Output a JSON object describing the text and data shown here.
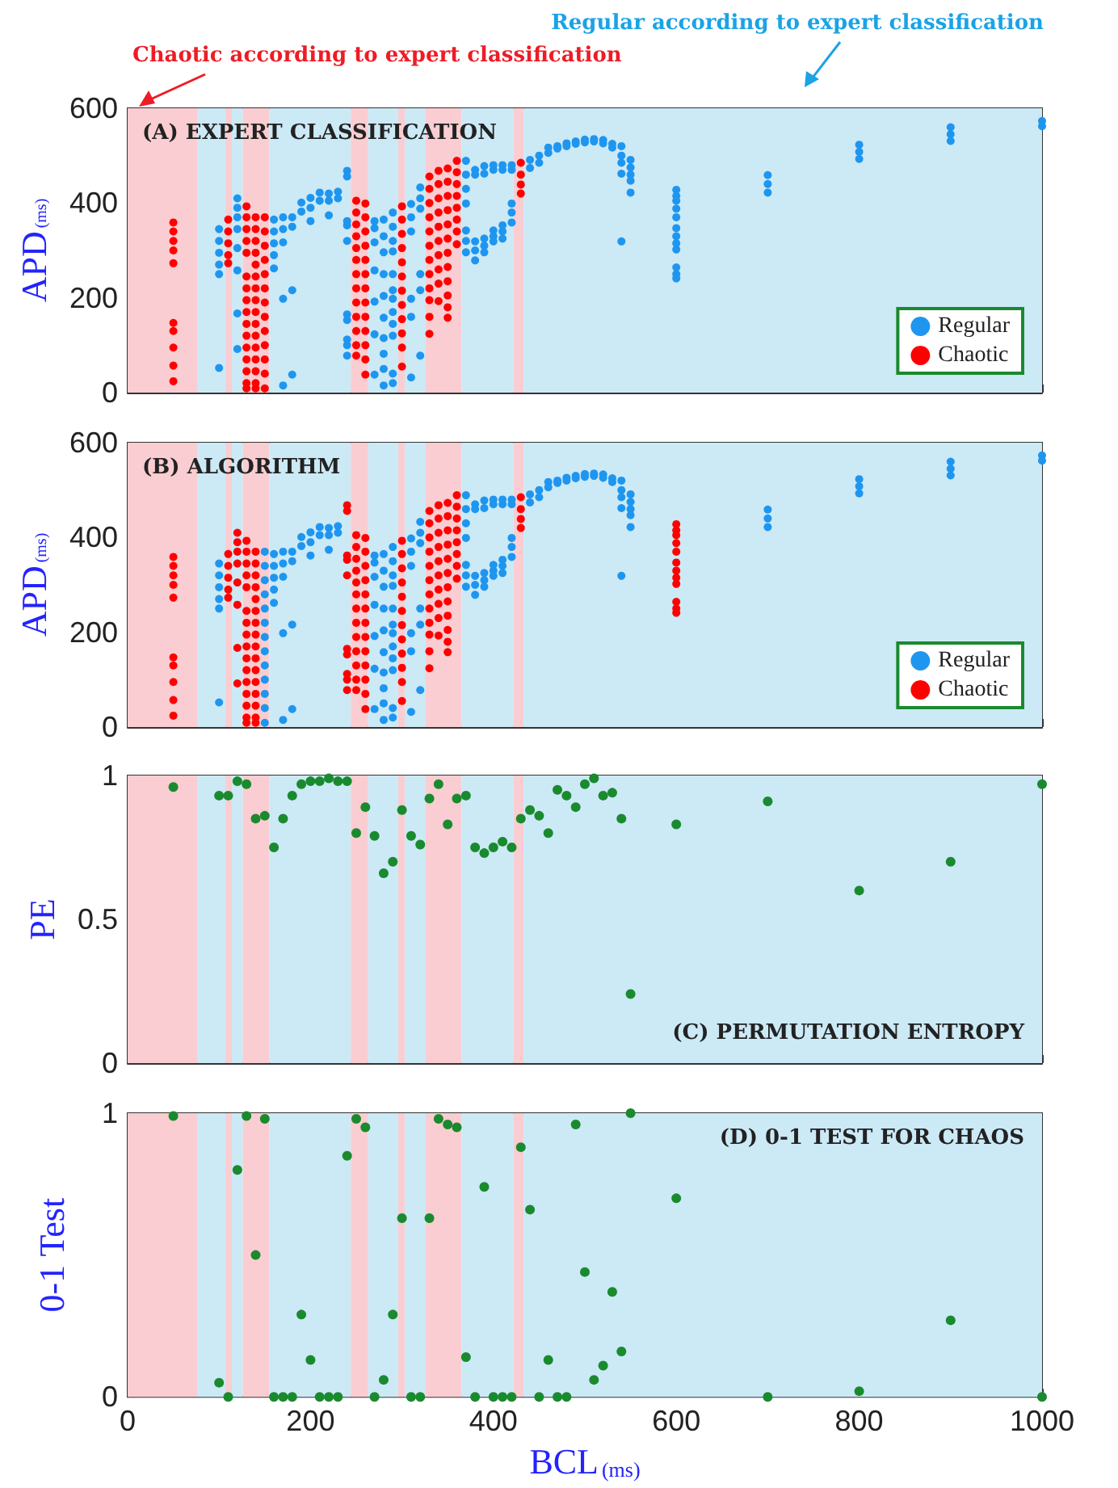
{
  "chart_data": [
    {
      "type": "scatter",
      "title": "(A) EXPERT CLASSIFICATION",
      "ylabel": "APD$_{(ms)}$",
      "annotations": [
        "Chaotic according to expert classification",
        "Regular according to expert classification"
      ],
      "xlim": [
        0,
        1000
      ],
      "xticks": [
        0,
        200,
        400,
        600,
        800,
        1000
      ],
      "ylim": [
        0,
        600
      ],
      "yticks": [
        0,
        200,
        400,
        600
      ],
      "tick_labels": "y",
      "legend": "bottom right",
      "marker": "circle",
      "bands": [
        {
          "axis": "x",
          "from": 0,
          "to": 76,
          "color": "#f9cdd1"
        },
        {
          "axis": "x",
          "from": 76,
          "to": 107,
          "color": "#cce9f6"
        },
        {
          "axis": "x",
          "from": 107,
          "to": 114,
          "color": "#f9cdd1"
        },
        {
          "axis": "x",
          "from": 114,
          "to": 126,
          "color": "#cce9f6"
        },
        {
          "axis": "x",
          "from": 126,
          "to": 155,
          "color": "#f9cdd1"
        },
        {
          "axis": "x",
          "from": 155,
          "to": 244,
          "color": "#cce9f6"
        },
        {
          "axis": "x",
          "from": 244,
          "to": 263,
          "color": "#f9cdd1"
        },
        {
          "axis": "x",
          "from": 263,
          "to": 296,
          "color": "#cce9f6"
        },
        {
          "axis": "x",
          "from": 296,
          "to": 303,
          "color": "#f9cdd1"
        },
        {
          "axis": "x",
          "from": 303,
          "to": 326,
          "color": "#cce9f6"
        },
        {
          "axis": "x",
          "from": 326,
          "to": 365,
          "color": "#f9cdd1"
        },
        {
          "axis": "x",
          "from": 365,
          "to": 422,
          "color": "#cce9f6"
        },
        {
          "axis": "x",
          "from": 422,
          "to": 433,
          "color": "#f9cdd1"
        },
        {
          "axis": "x",
          "from": 433,
          "to": 1000,
          "color": "#cce9f6"
        }
      ],
      "series": [
        {
          "name": "Regular",
          "color": "#1e96f0",
          "x": [
            100,
            100,
            100,
            100,
            100,
            100,
            120,
            120,
            120,
            120,
            120,
            120,
            120,
            120,
            160,
            160,
            160,
            160,
            160,
            170,
            170,
            170,
            170,
            170,
            180,
            180,
            180,
            180,
            190,
            190,
            200,
            200,
            200,
            210,
            210,
            220,
            220,
            220,
            230,
            230,
            240,
            240,
            240,
            240,
            240,
            240,
            240,
            240,
            240,
            240,
            270,
            270,
            270,
            270,
            270,
            270,
            270,
            280,
            280,
            280,
            280,
            280,
            280,
            280,
            280,
            280,
            280,
            290,
            290,
            290,
            290,
            290,
            290,
            290,
            290,
            290,
            290,
            290,
            290,
            310,
            310,
            310,
            310,
            310,
            310,
            320,
            320,
            320,
            320,
            320,
            320,
            370,
            370,
            370,
            370,
            370,
            370,
            370,
            380,
            380,
            380,
            380,
            380,
            390,
            390,
            390,
            390,
            390,
            400,
            400,
            400,
            400,
            400,
            410,
            410,
            410,
            410,
            410,
            420,
            420,
            420,
            420,
            420,
            440,
            440,
            450,
            450,
            460,
            460,
            470,
            470,
            480,
            480,
            490,
            490,
            500,
            500,
            510,
            510,
            520,
            520,
            530,
            530,
            540,
            540,
            540,
            540,
            540,
            550,
            550,
            550,
            550,
            550,
            600,
            600,
            600,
            600,
            600,
            600,
            600,
            600,
            600,
            600,
            600,
            600,
            700,
            700,
            700,
            800,
            800,
            800,
            900,
            900,
            900,
            1000,
            1000
          ],
          "values": [
            345,
            320,
            295,
            270,
            250,
            52,
            410,
            390,
            370,
            345,
            305,
            258,
            167,
            92,
            365,
            340,
            315,
            290,
            262,
            370,
            345,
            317,
            198,
            15,
            370,
            350,
            216,
            38,
            401,
            382,
            411,
            390,
            362,
            422,
            405,
            420,
            405,
            374,
            424,
            410,
            468,
            456,
            362,
            353,
            320,
            165,
            153,
            112,
            100,
            78,
            362,
            347,
            317,
            258,
            192,
            123,
            38,
            365,
            330,
            296,
            250,
            204,
            158,
            115,
            82,
            50,
            15,
            380,
            350,
            320,
            298,
            250,
            216,
            198,
            170,
            145,
            120,
            40,
            20,
            398,
            370,
            340,
            198,
            160,
            32,
            433,
            410,
            388,
            250,
            216,
            78,
            489,
            460,
            430,
            399,
            342,
            320,
            296,
            470,
            460,
            319,
            300,
            279,
            478,
            462,
            325,
            310,
            296,
            480,
            470,
            342,
            330,
            319,
            480,
            470,
            353,
            340,
            325,
            480,
            470,
            399,
            380,
            359,
            491,
            474,
            500,
            485,
            517,
            506,
            520,
            515,
            526,
            520,
            530,
            525,
            534,
            528,
            535,
            530,
            533,
            526,
            525,
            517,
            520,
            500,
            485,
            462,
            319,
            491,
            475,
            460,
            447,
            422,
            428,
            415,
            405,
            388,
            370,
            347,
            330,
            315,
            302,
            264,
            250,
            241,
            459,
            440,
            422,
            523,
            508,
            493,
            560,
            545,
            531,
            573,
            562
          ]
        },
        {
          "name": "Chaotic",
          "color": "#ff0000",
          "x": [
            50,
            50,
            50,
            50,
            50,
            50,
            50,
            50,
            50,
            50,
            110,
            110,
            110,
            110,
            110,
            130,
            130,
            130,
            130,
            130,
            130,
            130,
            130,
            130,
            130,
            130,
            130,
            130,
            130,
            130,
            130,
            140,
            140,
            140,
            140,
            140,
            140,
            140,
            140,
            140,
            140,
            140,
            140,
            140,
            140,
            140,
            140,
            150,
            150,
            150,
            150,
            150,
            150,
            150,
            150,
            150,
            150,
            150,
            150,
            150,
            250,
            250,
            250,
            250,
            250,
            250,
            250,
            250,
            250,
            250,
            250,
            250,
            250,
            260,
            260,
            260,
            260,
            260,
            260,
            260,
            260,
            260,
            260,
            260,
            260,
            260,
            300,
            300,
            300,
            300,
            300,
            300,
            300,
            300,
            300,
            300,
            300,
            300,
            330,
            330,
            330,
            330,
            330,
            330,
            330,
            330,
            330,
            330,
            330,
            330,
            340,
            340,
            340,
            340,
            340,
            340,
            340,
            340,
            340,
            340,
            350,
            350,
            350,
            350,
            350,
            350,
            350,
            350,
            350,
            350,
            350,
            350,
            360,
            360,
            360,
            360,
            360,
            360,
            360,
            360,
            430,
            430,
            430,
            430
          ],
          "values": [
            359,
            340,
            320,
            300,
            273,
            147,
            130,
            95,
            57,
            24,
            365,
            340,
            315,
            290,
            273,
            393,
            370,
            345,
            320,
            295,
            245,
            220,
            195,
            170,
            145,
            120,
            95,
            70,
            45,
            20,
            9,
            370,
            345,
            320,
            295,
            270,
            245,
            220,
            195,
            170,
            145,
            120,
            95,
            70,
            45,
            20,
            9,
            370,
            340,
            310,
            280,
            250,
            220,
            190,
            160,
            130,
            100,
            70,
            40,
            9,
            405,
            380,
            355,
            330,
            305,
            280,
            250,
            220,
            190,
            160,
            130,
            100,
            78,
            399,
            370,
            340,
            310,
            280,
            250,
            220,
            190,
            160,
            130,
            100,
            70,
            38,
            393,
            365,
            335,
            305,
            275,
            245,
            215,
            185,
            155,
            125,
            95,
            55,
            456,
            430,
            400,
            370,
            340,
            310,
            280,
            250,
            220,
            195,
            160,
            124,
            468,
            440,
            410,
            380,
            350,
            320,
            290,
            260,
            230,
            193,
            473,
            445,
            415,
            385,
            355,
            325,
            295,
            265,
            235,
            205,
            180,
            158,
            489,
            465,
            440,
            415,
            390,
            365,
            340,
            313,
            485,
            460,
            439,
            420
          ]
        }
      ]
    },
    {
      "type": "scatter",
      "title": "(B) ALGORITHM",
      "ylabel": "APD$_{(ms)}$",
      "xlim": [
        0,
        1000
      ],
      "xticks": [
        0,
        200,
        400,
        600,
        800,
        1000
      ],
      "ylim": [
        0,
        600
      ],
      "yticks": [
        0,
        200,
        400,
        600
      ],
      "tick_labels": "y",
      "legend": "bottom right",
      "marker": "circle",
      "bands": [
        {
          "axis": "x",
          "from": 0,
          "to": 76,
          "color": "#f9cdd1"
        },
        {
          "axis": "x",
          "from": 76,
          "to": 107,
          "color": "#cce9f6"
        },
        {
          "axis": "x",
          "from": 107,
          "to": 114,
          "color": "#f9cdd1"
        },
        {
          "axis": "x",
          "from": 114,
          "to": 126,
          "color": "#cce9f6"
        },
        {
          "axis": "x",
          "from": 126,
          "to": 155,
          "color": "#f9cdd1"
        },
        {
          "axis": "x",
          "from": 155,
          "to": 244,
          "color": "#cce9f6"
        },
        {
          "axis": "x",
          "from": 244,
          "to": 263,
          "color": "#f9cdd1"
        },
        {
          "axis": "x",
          "from": 263,
          "to": 296,
          "color": "#cce9f6"
        },
        {
          "axis": "x",
          "from": 296,
          "to": 303,
          "color": "#f9cdd1"
        },
        {
          "axis": "x",
          "from": 303,
          "to": 326,
          "color": "#cce9f6"
        },
        {
          "axis": "x",
          "from": 326,
          "to": 365,
          "color": "#f9cdd1"
        },
        {
          "axis": "x",
          "from": 365,
          "to": 422,
          "color": "#cce9f6"
        },
        {
          "axis": "x",
          "from": 422,
          "to": 433,
          "color": "#f9cdd1"
        },
        {
          "axis": "x",
          "from": 433,
          "to": 1000,
          "color": "#cce9f6"
        }
      ],
      "series": [
        {
          "name": "Regular",
          "color": "#1e96f0",
          "x": [
            100,
            100,
            100,
            100,
            100,
            100,
            150,
            150,
            150,
            150,
            150,
            150,
            150,
            150,
            150,
            150,
            150,
            150,
            150,
            160,
            160,
            160,
            160,
            160,
            170,
            170,
            170,
            170,
            170,
            180,
            180,
            180,
            180,
            190,
            190,
            200,
            200,
            200,
            210,
            210,
            220,
            220,
            220,
            230,
            230,
            270,
            270,
            270,
            270,
            270,
            270,
            270,
            280,
            280,
            280,
            280,
            280,
            280,
            280,
            280,
            280,
            280,
            290,
            290,
            290,
            290,
            290,
            290,
            290,
            290,
            290,
            290,
            290,
            290,
            310,
            310,
            310,
            310,
            310,
            310,
            320,
            320,
            320,
            320,
            320,
            320,
            370,
            370,
            370,
            370,
            370,
            370,
            370,
            380,
            380,
            380,
            380,
            380,
            390,
            390,
            390,
            390,
            390,
            400,
            400,
            400,
            400,
            400,
            410,
            410,
            410,
            410,
            410,
            420,
            420,
            420,
            420,
            420,
            440,
            440,
            450,
            450,
            460,
            460,
            470,
            470,
            480,
            480,
            490,
            490,
            500,
            500,
            510,
            510,
            520,
            520,
            530,
            530,
            540,
            540,
            540,
            540,
            540,
            550,
            550,
            550,
            550,
            550,
            700,
            700,
            700,
            800,
            800,
            800,
            900,
            900,
            900,
            1000,
            1000
          ],
          "values": [
            345,
            320,
            295,
            270,
            250,
            52,
            370,
            340,
            310,
            280,
            250,
            220,
            190,
            160,
            130,
            100,
            70,
            40,
            9,
            365,
            340,
            315,
            290,
            262,
            370,
            345,
            317,
            198,
            15,
            370,
            350,
            216,
            38,
            401,
            382,
            411,
            390,
            362,
            422,
            405,
            420,
            405,
            374,
            424,
            410,
            362,
            347,
            317,
            258,
            192,
            123,
            38,
            365,
            330,
            296,
            250,
            204,
            158,
            115,
            82,
            50,
            15,
            380,
            350,
            320,
            298,
            250,
            216,
            198,
            170,
            145,
            120,
            40,
            20,
            398,
            370,
            340,
            198,
            160,
            32,
            433,
            410,
            388,
            250,
            216,
            78,
            489,
            460,
            430,
            399,
            342,
            320,
            296,
            470,
            460,
            319,
            300,
            279,
            478,
            462,
            325,
            310,
            296,
            480,
            470,
            342,
            330,
            319,
            480,
            470,
            353,
            340,
            325,
            480,
            470,
            399,
            380,
            359,
            491,
            474,
            500,
            485,
            517,
            506,
            520,
            515,
            526,
            520,
            530,
            525,
            534,
            528,
            535,
            530,
            533,
            526,
            525,
            517,
            520,
            500,
            485,
            462,
            319,
            491,
            475,
            460,
            447,
            422,
            459,
            440,
            422,
            523,
            508,
            493,
            560,
            545,
            531,
            573,
            562
          ]
        },
        {
          "name": "Chaotic",
          "color": "#ff0000",
          "x": [
            50,
            50,
            50,
            50,
            50,
            50,
            50,
            50,
            50,
            50,
            110,
            110,
            110,
            110,
            110,
            120,
            120,
            120,
            120,
            120,
            120,
            120,
            120,
            130,
            130,
            130,
            130,
            130,
            130,
            130,
            130,
            130,
            130,
            130,
            130,
            130,
            130,
            130,
            130,
            140,
            140,
            140,
            140,
            140,
            140,
            140,
            140,
            140,
            140,
            140,
            140,
            140,
            140,
            140,
            140,
            240,
            240,
            240,
            240,
            240,
            240,
            240,
            240,
            240,
            240,
            250,
            250,
            250,
            250,
            250,
            250,
            250,
            250,
            250,
            250,
            250,
            250,
            250,
            260,
            260,
            260,
            260,
            260,
            260,
            260,
            260,
            260,
            260,
            260,
            260,
            260,
            300,
            300,
            300,
            300,
            300,
            300,
            300,
            300,
            300,
            300,
            300,
            300,
            330,
            330,
            330,
            330,
            330,
            330,
            330,
            330,
            330,
            330,
            330,
            330,
            340,
            340,
            340,
            340,
            340,
            340,
            340,
            340,
            340,
            340,
            350,
            350,
            350,
            350,
            350,
            350,
            350,
            350,
            350,
            350,
            350,
            350,
            360,
            360,
            360,
            360,
            360,
            360,
            360,
            360,
            430,
            430,
            430,
            430,
            600,
            600,
            600,
            600,
            600,
            600,
            600,
            600,
            600,
            600,
            600,
            600
          ],
          "values": [
            359,
            340,
            320,
            300,
            273,
            147,
            130,
            95,
            57,
            24,
            365,
            340,
            315,
            290,
            273,
            410,
            390,
            370,
            345,
            305,
            258,
            167,
            92,
            393,
            370,
            345,
            320,
            295,
            245,
            220,
            195,
            170,
            145,
            120,
            95,
            70,
            45,
            20,
            9,
            370,
            345,
            320,
            295,
            270,
            245,
            220,
            195,
            170,
            145,
            120,
            95,
            70,
            45,
            20,
            9,
            468,
            456,
            362,
            353,
            320,
            165,
            153,
            112,
            100,
            78,
            405,
            380,
            355,
            330,
            305,
            280,
            250,
            220,
            190,
            160,
            130,
            100,
            78,
            399,
            370,
            340,
            310,
            280,
            250,
            220,
            190,
            160,
            130,
            100,
            70,
            38,
            393,
            365,
            335,
            305,
            275,
            245,
            215,
            185,
            155,
            125,
            95,
            55,
            456,
            430,
            400,
            370,
            340,
            310,
            280,
            250,
            220,
            195,
            160,
            124,
            468,
            440,
            410,
            380,
            350,
            320,
            290,
            260,
            230,
            193,
            473,
            445,
            415,
            385,
            355,
            325,
            295,
            265,
            235,
            205,
            180,
            158,
            489,
            465,
            440,
            415,
            390,
            365,
            340,
            313,
            485,
            460,
            439,
            420,
            428,
            415,
            405,
            388,
            370,
            347,
            330,
            315,
            302,
            264,
            250,
            241
          ]
        }
      ]
    },
    {
      "type": "scatter",
      "title": "(C) PERMUTATION ENTROPY",
      "ylabel": "PE",
      "xlim": [
        0,
        1000
      ],
      "xticks": [
        0,
        200,
        400,
        600,
        800,
        1000
      ],
      "ylim": [
        0,
        1
      ],
      "yticks": [
        0,
        0.5,
        1
      ],
      "tick_labels": "y",
      "marker": "circle",
      "bands": [
        {
          "axis": "x",
          "from": 0,
          "to": 76,
          "color": "#f9cdd1"
        },
        {
          "axis": "x",
          "from": 76,
          "to": 107,
          "color": "#cce9f6"
        },
        {
          "axis": "x",
          "from": 107,
          "to": 114,
          "color": "#f9cdd1"
        },
        {
          "axis": "x",
          "from": 114,
          "to": 126,
          "color": "#cce9f6"
        },
        {
          "axis": "x",
          "from": 126,
          "to": 155,
          "color": "#f9cdd1"
        },
        {
          "axis": "x",
          "from": 155,
          "to": 244,
          "color": "#cce9f6"
        },
        {
          "axis": "x",
          "from": 244,
          "to": 263,
          "color": "#f9cdd1"
        },
        {
          "axis": "x",
          "from": 263,
          "to": 296,
          "color": "#cce9f6"
        },
        {
          "axis": "x",
          "from": 296,
          "to": 303,
          "color": "#f9cdd1"
        },
        {
          "axis": "x",
          "from": 303,
          "to": 326,
          "color": "#cce9f6"
        },
        {
          "axis": "x",
          "from": 326,
          "to": 365,
          "color": "#f9cdd1"
        },
        {
          "axis": "x",
          "from": 365,
          "to": 422,
          "color": "#cce9f6"
        },
        {
          "axis": "x",
          "from": 422,
          "to": 433,
          "color": "#f9cdd1"
        },
        {
          "axis": "x",
          "from": 433,
          "to": 1000,
          "color": "#cce9f6"
        }
      ],
      "series": [
        {
          "color": "#1a8a2e",
          "x": [
            50,
            100,
            110,
            120,
            130,
            140,
            150,
            160,
            170,
            180,
            190,
            200,
            210,
            220,
            230,
            240,
            250,
            260,
            270,
            280,
            290,
            300,
            310,
            320,
            330,
            340,
            350,
            360,
            370,
            380,
            390,
            400,
            410,
            420,
            430,
            440,
            450,
            460,
            470,
            480,
            490,
            500,
            510,
            520,
            530,
            540,
            550,
            600,
            700,
            800,
            900,
            1000
          ],
          "values": [
            0.96,
            0.93,
            0.93,
            0.98,
            0.97,
            0.85,
            0.86,
            0.75,
            0.85,
            0.93,
            0.97,
            0.98,
            0.98,
            0.99,
            0.98,
            0.98,
            0.8,
            0.89,
            0.79,
            0.66,
            0.7,
            0.88,
            0.79,
            0.76,
            0.92,
            0.97,
            0.83,
            0.92,
            0.93,
            0.75,
            0.73,
            0.75,
            0.77,
            0.75,
            0.85,
            0.88,
            0.86,
            0.8,
            0.95,
            0.93,
            0.89,
            0.97,
            0.99,
            0.93,
            0.94,
            0.85,
            0.24,
            0.83,
            0.91,
            0.6,
            0.7,
            0.97
          ]
        }
      ]
    },
    {
      "type": "scatter",
      "title": "(D) 0-1 TEST FOR CHAOS",
      "ylabel": "0-1 Test",
      "xlabel": "BCL$_{(ms)}$",
      "xlim": [
        0,
        1000
      ],
      "xticks": [
        0,
        200,
        400,
        600,
        800,
        1000
      ],
      "ylim": [
        0,
        1
      ],
      "yticks": [
        0,
        1
      ],
      "marker": "circle",
      "bands": [
        {
          "axis": "x",
          "from": 0,
          "to": 76,
          "color": "#f9cdd1"
        },
        {
          "axis": "x",
          "from": 76,
          "to": 107,
          "color": "#cce9f6"
        },
        {
          "axis": "x",
          "from": 107,
          "to": 114,
          "color": "#f9cdd1"
        },
        {
          "axis": "x",
          "from": 114,
          "to": 126,
          "color": "#cce9f6"
        },
        {
          "axis": "x",
          "from": 126,
          "to": 155,
          "color": "#f9cdd1"
        },
        {
          "axis": "x",
          "from": 155,
          "to": 244,
          "color": "#cce9f6"
        },
        {
          "axis": "x",
          "from": 244,
          "to": 263,
          "color": "#f9cdd1"
        },
        {
          "axis": "x",
          "from": 263,
          "to": 296,
          "color": "#cce9f6"
        },
        {
          "axis": "x",
          "from": 296,
          "to": 303,
          "color": "#f9cdd1"
        },
        {
          "axis": "x",
          "from": 303,
          "to": 326,
          "color": "#cce9f6"
        },
        {
          "axis": "x",
          "from": 326,
          "to": 365,
          "color": "#f9cdd1"
        },
        {
          "axis": "x",
          "from": 365,
          "to": 422,
          "color": "#cce9f6"
        },
        {
          "axis": "x",
          "from": 422,
          "to": 433,
          "color": "#f9cdd1"
        },
        {
          "axis": "x",
          "from": 433,
          "to": 1000,
          "color": "#cce9f6"
        }
      ],
      "series": [
        {
          "color": "#1a8a2e",
          "x": [
            50,
            100,
            110,
            120,
            130,
            140,
            150,
            160,
            170,
            180,
            190,
            200,
            210,
            220,
            230,
            240,
            250,
            260,
            270,
            280,
            290,
            300,
            310,
            320,
            330,
            340,
            350,
            360,
            370,
            380,
            390,
            400,
            410,
            420,
            430,
            440,
            450,
            460,
            470,
            480,
            490,
            500,
            510,
            520,
            530,
            540,
            550,
            600,
            700,
            800,
            900,
            1000
          ],
          "values": [
            0.99,
            0.05,
            0,
            0.8,
            0.99,
            0.5,
            0.98,
            0,
            0,
            0,
            0.29,
            0.13,
            0,
            0,
            0,
            0.85,
            0.98,
            0.95,
            0,
            0.06,
            0.29,
            0.63,
            0,
            0,
            0.63,
            0.98,
            0.96,
            0.95,
            0.14,
            0,
            0.74,
            0,
            0,
            0,
            0.88,
            0.66,
            0,
            0.13,
            0,
            0,
            0.96,
            0.44,
            0.06,
            0.11,
            0.37,
            0.16,
            1,
            0.7,
            0,
            0.02,
            0.27,
            0
          ]
        }
      ]
    }
  ]
}
